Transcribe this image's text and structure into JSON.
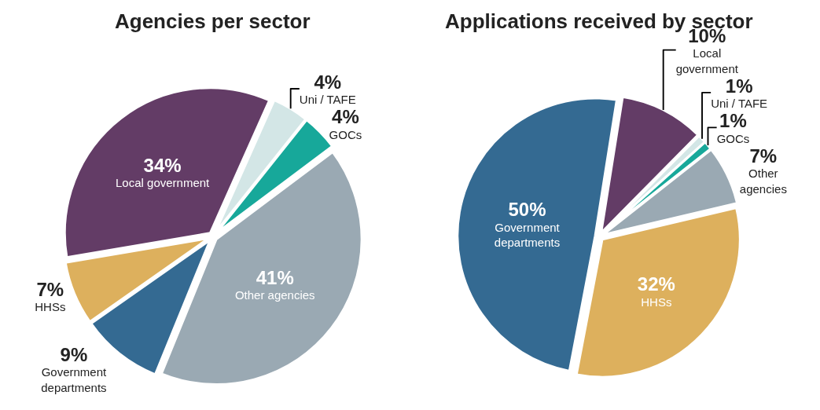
{
  "chart_data": [
    {
      "type": "pie",
      "title": "Agencies per sector",
      "categories": [
        "Uni / TAFE",
        "GOCs",
        "Other agencies",
        "Government departments",
        "HHSs",
        "Local government"
      ],
      "values": [
        4,
        4,
        41,
        9,
        7,
        34
      ],
      "value_labels": [
        "4%",
        "4%",
        "41%",
        "9%",
        "7%",
        "34%"
      ],
      "colors": [
        "#d3e6e6",
        "#17a89a",
        "#9aa9b3",
        "#346a92",
        "#ddb05d",
        "#633c66"
      ],
      "legend": false
    },
    {
      "type": "pie",
      "title": "Applications received by sector",
      "categories": [
        "Local government",
        "Uni / TAFE",
        "GOCs",
        "Other agencies",
        "HHSs",
        "Government departments"
      ],
      "values": [
        10,
        1,
        1,
        7,
        32,
        50
      ],
      "value_labels": [
        "10%",
        "1%",
        "1%",
        "7%",
        "32%",
        "50%"
      ],
      "colors": [
        "#633c66",
        "#d3e6e6",
        "#17a89a",
        "#9aa9b3",
        "#ddb05d",
        "#346a92"
      ],
      "legend": false
    }
  ]
}
